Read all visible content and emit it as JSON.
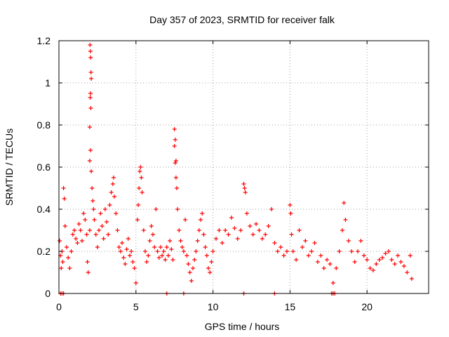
{
  "chart_data": {
    "type": "scatter",
    "title": "Day 357 of 2023, SRMTID for receiver falk",
    "xlabel": "GPS time / hours",
    "ylabel": "SRMTID / TECUs",
    "xlim": [
      0,
      24
    ],
    "ylim": [
      0,
      1.2
    ],
    "xticks": [
      0,
      5,
      10,
      15,
      20
    ],
    "xtick_labels": [
      "0",
      "5",
      "10",
      "15",
      "20"
    ],
    "yticks": [
      0,
      0.2,
      0.4,
      0.6,
      0.8,
      1.0,
      1.2
    ],
    "ytick_labels": [
      "0",
      "0.2",
      "0.4",
      "0.6",
      "0.8",
      "1",
      "1.2"
    ],
    "grid": true,
    "marker": "+",
    "series": [
      {
        "name": "SRMTID",
        "color": "#ff0000",
        "points": [
          [
            0.05,
            0.25
          ],
          [
            0.1,
            0.18
          ],
          [
            0.15,
            0.12
          ],
          [
            0.2,
            0.2
          ],
          [
            0.25,
            0.15
          ],
          [
            0.3,
            0.5
          ],
          [
            0.35,
            0.45
          ],
          [
            0.4,
            0.32
          ],
          [
            0.5,
            0.22
          ],
          [
            0.6,
            0.17
          ],
          [
            0.7,
            0.12
          ],
          [
            0.8,
            0.2
          ],
          [
            0.9,
            0.28
          ],
          [
            1.0,
            0.3
          ],
          [
            1.1,
            0.26
          ],
          [
            1.2,
            0.24
          ],
          [
            1.3,
            0.33
          ],
          [
            1.4,
            0.3
          ],
          [
            1.5,
            0.25
          ],
          [
            1.6,
            0.38
          ],
          [
            1.7,
            0.35
          ],
          [
            1.8,
            0.28
          ],
          [
            1.85,
            0.15
          ],
          [
            1.9,
            0.1
          ],
          [
            2.0,
            0.3
          ],
          [
            2.02,
            1.18
          ],
          [
            2.04,
            1.15
          ],
          [
            2.06,
            1.12
          ],
          [
            2.08,
            1.05
          ],
          [
            2.1,
            1.02
          ],
          [
            2.05,
            0.95
          ],
          [
            2.03,
            0.93
          ],
          [
            2.07,
            0.88
          ],
          [
            2.0,
            0.79
          ],
          [
            2.05,
            0.68
          ],
          [
            2.0,
            0.63
          ],
          [
            2.1,
            0.58
          ],
          [
            2.15,
            0.5
          ],
          [
            2.2,
            0.44
          ],
          [
            2.25,
            0.4
          ],
          [
            2.3,
            0.35
          ],
          [
            2.4,
            0.28
          ],
          [
            2.5,
            0.22
          ],
          [
            2.6,
            0.3
          ],
          [
            2.7,
            0.38
          ],
          [
            2.8,
            0.32
          ],
          [
            2.9,
            0.26
          ],
          [
            3.0,
            0.4
          ],
          [
            3.1,
            0.34
          ],
          [
            3.2,
            0.28
          ],
          [
            3.3,
            0.42
          ],
          [
            3.4,
            0.48
          ],
          [
            3.5,
            0.52
          ],
          [
            3.55,
            0.55
          ],
          [
            3.6,
            0.46
          ],
          [
            3.7,
            0.38
          ],
          [
            3.8,
            0.3
          ],
          [
            3.9,
            0.22
          ],
          [
            4.0,
            0.2
          ],
          [
            4.1,
            0.24
          ],
          [
            4.2,
            0.17
          ],
          [
            4.3,
            0.14
          ],
          [
            4.4,
            0.21
          ],
          [
            4.5,
            0.26
          ],
          [
            4.6,
            0.18
          ],
          [
            4.7,
            0.2
          ],
          [
            4.8,
            0.15
          ],
          [
            4.9,
            0.12
          ],
          [
            5.0,
            0.05
          ],
          [
            5.1,
            0.35
          ],
          [
            5.15,
            0.42
          ],
          [
            5.2,
            0.5
          ],
          [
            5.25,
            0.58
          ],
          [
            5.3,
            0.6
          ],
          [
            5.35,
            0.55
          ],
          [
            5.4,
            0.48
          ],
          [
            5.5,
            0.3
          ],
          [
            5.6,
            0.2
          ],
          [
            5.7,
            0.15
          ],
          [
            5.8,
            0.18
          ],
          [
            5.9,
            0.25
          ],
          [
            6.0,
            0.32
          ],
          [
            6.1,
            0.28
          ],
          [
            6.2,
            0.22
          ],
          [
            6.3,
            0.4
          ],
          [
            6.4,
            0.2
          ],
          [
            6.5,
            0.17
          ],
          [
            6.6,
            0.22
          ],
          [
            6.7,
            0.18
          ],
          [
            6.8,
            0.2
          ],
          [
            6.9,
            0.16
          ],
          [
            7.0,
            0.22
          ],
          [
            7.1,
            0.18
          ],
          [
            7.2,
            0.25
          ],
          [
            7.3,
            0.21
          ],
          [
            7.4,
            0.16
          ],
          [
            7.5,
            0.78
          ],
          [
            7.55,
            0.73
          ],
          [
            7.5,
            0.7
          ],
          [
            7.6,
            0.63
          ],
          [
            7.55,
            0.62
          ],
          [
            7.6,
            0.55
          ],
          [
            7.65,
            0.5
          ],
          [
            7.7,
            0.4
          ],
          [
            7.8,
            0.3
          ],
          [
            7.9,
            0.25
          ],
          [
            8.0,
            0.22
          ],
          [
            8.1,
            0.2
          ],
          [
            8.2,
            0.35
          ],
          [
            8.3,
            0.18
          ],
          [
            8.4,
            0.14
          ],
          [
            8.5,
            0.1
          ],
          [
            8.6,
            0.06
          ],
          [
            8.7,
            0.12
          ],
          [
            8.8,
            0.16
          ],
          [
            8.9,
            0.2
          ],
          [
            9.0,
            0.25
          ],
          [
            9.1,
            0.3
          ],
          [
            9.2,
            0.35
          ],
          [
            9.3,
            0.38
          ],
          [
            9.4,
            0.28
          ],
          [
            9.5,
            0.22
          ],
          [
            9.6,
            0.18
          ],
          [
            9.7,
            0.12
          ],
          [
            9.8,
            0.1
          ],
          [
            9.9,
            0.15
          ],
          [
            10.0,
            0.2
          ],
          [
            10.2,
            0.26
          ],
          [
            10.4,
            0.3
          ],
          [
            10.6,
            0.24
          ],
          [
            10.8,
            0.3
          ],
          [
            11.0,
            0.28
          ],
          [
            11.2,
            0.36
          ],
          [
            11.4,
            0.31
          ],
          [
            11.6,
            0.26
          ],
          [
            11.8,
            0.3
          ],
          [
            12.0,
            0.52
          ],
          [
            12.05,
            0.5
          ],
          [
            12.1,
            0.48
          ],
          [
            12.2,
            0.38
          ],
          [
            12.4,
            0.32
          ],
          [
            12.6,
            0.28
          ],
          [
            12.8,
            0.33
          ],
          [
            13.0,
            0.3
          ],
          [
            13.2,
            0.26
          ],
          [
            13.4,
            0.28
          ],
          [
            13.6,
            0.32
          ],
          [
            13.8,
            0.4
          ],
          [
            14.0,
            0.24
          ],
          [
            14.2,
            0.2
          ],
          [
            14.4,
            0.22
          ],
          [
            14.6,
            0.18
          ],
          [
            14.8,
            0.2
          ],
          [
            15.0,
            0.42
          ],
          [
            15.05,
            0.38
          ],
          [
            15.1,
            0.28
          ],
          [
            15.2,
            0.2
          ],
          [
            15.4,
            0.16
          ],
          [
            15.6,
            0.3
          ],
          [
            15.8,
            0.22
          ],
          [
            16.0,
            0.25
          ],
          [
            16.2,
            0.18
          ],
          [
            16.4,
            0.2
          ],
          [
            16.6,
            0.24
          ],
          [
            16.8,
            0.15
          ],
          [
            17.0,
            0.18
          ],
          [
            17.2,
            0.12
          ],
          [
            17.4,
            0.16
          ],
          [
            17.6,
            0.14
          ],
          [
            17.8,
            0.05
          ],
          [
            18.0,
            0.12
          ],
          [
            18.2,
            0.2
          ],
          [
            18.4,
            0.3
          ],
          [
            18.5,
            0.43
          ],
          [
            18.6,
            0.35
          ],
          [
            18.8,
            0.25
          ],
          [
            19.0,
            0.2
          ],
          [
            19.2,
            0.15
          ],
          [
            19.4,
            0.2
          ],
          [
            19.6,
            0.25
          ],
          [
            19.8,
            0.18
          ],
          [
            20.0,
            0.16
          ],
          [
            20.2,
            0.12
          ],
          [
            20.4,
            0.11
          ],
          [
            20.6,
            0.14
          ],
          [
            20.8,
            0.16
          ],
          [
            21.0,
            0.17
          ],
          [
            21.2,
            0.19
          ],
          [
            21.4,
            0.2
          ],
          [
            21.6,
            0.16
          ],
          [
            21.8,
            0.14
          ],
          [
            22.0,
            0.18
          ],
          [
            22.2,
            0.15
          ],
          [
            22.4,
            0.13
          ],
          [
            22.6,
            0.1
          ],
          [
            22.8,
            0.18
          ],
          [
            22.9,
            0.07
          ],
          [
            0.1,
            0.0
          ],
          [
            0.2,
            0.0
          ],
          [
            0.3,
            0.0
          ],
          [
            7.0,
            0.0
          ],
          [
            8.1,
            0.0
          ],
          [
            12.0,
            0.0
          ],
          [
            14.0,
            0.0
          ],
          [
            17.7,
            0.0
          ],
          [
            17.8,
            0.0
          ],
          [
            17.9,
            0.0
          ]
        ]
      }
    ]
  }
}
